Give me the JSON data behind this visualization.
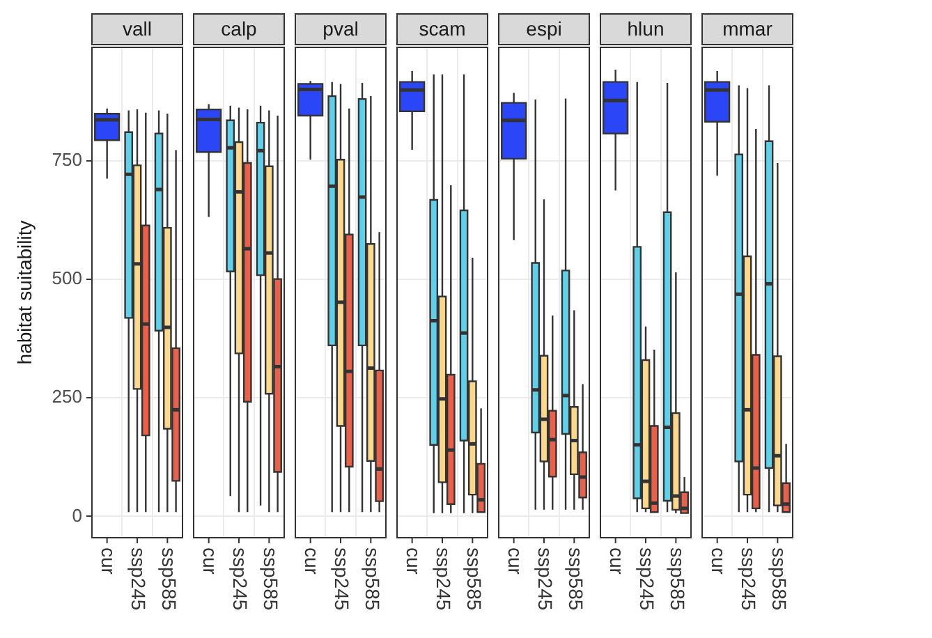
{
  "chart_data": [
    {
      "type": "box",
      "title": "vall",
      "ylabel": "habitat suitability",
      "categories": [
        "cur",
        "ssp245",
        "ssp585"
      ],
      "ylim": [
        -45,
        990
      ],
      "yticks": [
        0,
        250,
        500,
        750
      ],
      "grid": true,
      "series": [
        {
          "color": "#2a46f7",
          "boxes": [
            {
              "low": 713,
              "q1": 794,
              "median": 837,
              "q3": 850,
              "high": 861
            },
            null,
            null
          ]
        },
        {
          "color": "#5fd0ea",
          "boxes": [
            null,
            {
              "low": 9,
              "q1": 419,
              "median": 722,
              "q3": 811,
              "high": 857
            },
            {
              "low": 9,
              "q1": 392,
              "median": 690,
              "q3": 808,
              "high": 857
            }
          ]
        },
        {
          "color": "#fbd88c",
          "boxes": [
            null,
            {
              "low": 9,
              "q1": 269,
              "median": 533,
              "q3": 741,
              "high": 859
            },
            {
              "low": 9,
              "q1": 185,
              "median": 399,
              "q3": 609,
              "high": 850
            }
          ]
        },
        {
          "color": "#e9604b",
          "boxes": [
            null,
            {
              "low": 9,
              "q1": 171,
              "median": 406,
              "q3": 614,
              "high": 852
            },
            {
              "low": 9,
              "q1": 75,
              "median": 225,
              "q3": 355,
              "high": 773
            }
          ]
        }
      ]
    },
    {
      "type": "box",
      "title": "calp",
      "categories": [
        "cur",
        "ssp245",
        "ssp585"
      ],
      "ylim": [
        -45,
        990
      ],
      "yticks": [
        0,
        250,
        500,
        750
      ],
      "grid": true,
      "tick_labels": "x",
      "series": [
        {
          "color": "#2a46f7",
          "boxes": [
            {
              "low": 632,
              "q1": 769,
              "median": 838,
              "q3": 859,
              "high": 870
            },
            null,
            null
          ]
        },
        {
          "color": "#5fd0ea",
          "boxes": [
            null,
            {
              "low": 43,
              "q1": 517,
              "median": 778,
              "q3": 836,
              "high": 867
            },
            {
              "low": 23,
              "q1": 509,
              "median": 772,
              "q3": 831,
              "high": 867
            }
          ]
        },
        {
          "color": "#fbd88c",
          "boxes": [
            null,
            {
              "low": 9,
              "q1": 344,
              "median": 685,
              "q3": 790,
              "high": 863
            },
            {
              "low": 9,
              "q1": 259,
              "median": 556,
              "q3": 739,
              "high": 857
            }
          ]
        },
        {
          "color": "#e9604b",
          "boxes": [
            null,
            {
              "low": 9,
              "q1": 242,
              "median": 565,
              "q3": 746,
              "high": 859
            },
            {
              "low": 9,
              "q1": 94,
              "median": 316,
              "q3": 501,
              "high": 846
            }
          ]
        }
      ]
    },
    {
      "type": "box",
      "title": "pval",
      "categories": [
        "cur",
        "ssp245",
        "ssp585"
      ],
      "ylim": [
        -45,
        990
      ],
      "yticks": [
        0,
        250,
        500,
        750
      ],
      "grid": true,
      "tick_labels": "x",
      "series": [
        {
          "color": "#2a46f7",
          "boxes": [
            {
              "low": 753,
              "q1": 846,
              "median": 901,
              "q3": 913,
              "high": 919
            },
            null,
            null
          ]
        },
        {
          "color": "#5fd0ea",
          "boxes": [
            null,
            {
              "low": 9,
              "q1": 361,
              "median": 697,
              "q3": 887,
              "high": 917
            },
            {
              "low": 9,
              "q1": 361,
              "median": 674,
              "q3": 881,
              "high": 915
            }
          ]
        },
        {
          "color": "#fbd88c",
          "boxes": [
            null,
            {
              "low": 9,
              "q1": 191,
              "median": 452,
              "q3": 753,
              "high": 913
            },
            {
              "low": 9,
              "q1": 117,
              "median": 313,
              "q3": 575,
              "high": 887
            }
          ]
        },
        {
          "color": "#e9604b",
          "boxes": [
            null,
            {
              "low": 9,
              "q1": 105,
              "median": 306,
              "q3": 595,
              "high": 861
            },
            {
              "low": 9,
              "q1": 32,
              "median": 100,
              "q3": 308,
              "high": 600
            }
          ]
        }
      ]
    },
    {
      "type": "box",
      "title": "scam",
      "categories": [
        "cur",
        "ssp245",
        "ssp585"
      ],
      "ylim": [
        -45,
        990
      ],
      "yticks": [
        0,
        250,
        500,
        750
      ],
      "grid": true,
      "tick_labels": "x",
      "series": [
        {
          "color": "#2a46f7",
          "boxes": [
            {
              "low": 774,
              "q1": 855,
              "median": 900,
              "q3": 917,
              "high": 940
            },
            null,
            null
          ]
        },
        {
          "color": "#5fd0ea",
          "boxes": [
            null,
            {
              "low": 7,
              "q1": 151,
              "median": 413,
              "q3": 668,
              "high": 933
            },
            {
              "low": 7,
              "q1": 160,
              "median": 387,
              "q3": 646,
              "high": 933
            }
          ]
        },
        {
          "color": "#fbd88c",
          "boxes": [
            null,
            {
              "low": 7,
              "q1": 72,
              "median": 248,
              "q3": 464,
              "high": 933
            },
            {
              "low": 7,
              "q1": 46,
              "median": 153,
              "q3": 285,
              "high": 546
            }
          ]
        },
        {
          "color": "#e9604b",
          "boxes": [
            null,
            {
              "low": 7,
              "q1": 26,
              "median": 140,
              "q3": 299,
              "high": 699
            },
            {
              "low": 9,
              "q1": 9,
              "median": 35,
              "q3": 111,
              "high": 228
            }
          ]
        }
      ]
    },
    {
      "type": "box",
      "title": "espi",
      "categories": [
        "cur",
        "ssp245",
        "ssp585"
      ],
      "ylim": [
        -45,
        990
      ],
      "yticks": [
        0,
        250,
        500,
        750
      ],
      "grid": true,
      "tick_labels": "x",
      "series": [
        {
          "color": "#2a46f7",
          "boxes": [
            {
              "low": 583,
              "q1": 755,
              "median": 836,
              "q3": 873,
              "high": 894
            },
            null,
            null
          ]
        },
        {
          "color": "#5fd0ea",
          "boxes": [
            null,
            {
              "low": 14,
              "q1": 177,
              "median": 267,
              "q3": 535,
              "high": 880
            },
            {
              "low": 14,
              "q1": 174,
              "median": 255,
              "q3": 519,
              "high": 882
            }
          ]
        },
        {
          "color": "#fbd88c",
          "boxes": [
            null,
            {
              "low": 14,
              "q1": 116,
              "median": 205,
              "q3": 339,
              "high": 669
            },
            {
              "low": 14,
              "q1": 89,
              "median": 160,
              "q3": 231,
              "high": 435
            }
          ]
        },
        {
          "color": "#e9604b",
          "boxes": [
            null,
            {
              "low": 14,
              "q1": 84,
              "median": 162,
              "q3": 223,
              "high": 424
            },
            {
              "low": 14,
              "q1": 40,
              "median": 83,
              "q3": 135,
              "high": 279
            }
          ]
        }
      ]
    },
    {
      "type": "box",
      "title": "hlun",
      "categories": [
        "cur",
        "ssp245",
        "ssp585"
      ],
      "ylim": [
        -45,
        990
      ],
      "yticks": [
        0,
        250,
        500,
        750
      ],
      "grid": true,
      "tick_labels": "x",
      "series": [
        {
          "color": "#2a46f7",
          "boxes": [
            {
              "low": 688,
              "q1": 808,
              "median": 878,
              "q3": 917,
              "high": 943
            },
            null,
            null
          ]
        },
        {
          "color": "#5fd0ea",
          "boxes": [
            null,
            {
              "low": 9,
              "q1": 38,
              "median": 151,
              "q3": 569,
              "high": 917
            },
            {
              "low": 9,
              "q1": 33,
              "median": 188,
              "q3": 642,
              "high": 915
            }
          ]
        },
        {
          "color": "#fbd88c",
          "boxes": [
            null,
            {
              "low": 9,
              "q1": 17,
              "median": 74,
              "q3": 330,
              "high": 401
            },
            {
              "low": 7,
              "q1": 14,
              "median": 43,
              "q3": 218,
              "high": 515
            }
          ]
        },
        {
          "color": "#e9604b",
          "boxes": [
            null,
            {
              "low": 9,
              "q1": 9,
              "median": 28,
              "q3": 191,
              "high": 352
            },
            {
              "low": 7,
              "q1": 7,
              "median": 17,
              "q3": 51,
              "high": 83
            }
          ]
        }
      ]
    },
    {
      "type": "box",
      "title": "mmar",
      "categories": [
        "cur",
        "ssp245",
        "ssp585"
      ],
      "ylim": [
        -45,
        990
      ],
      "yticks": [
        0,
        250,
        500,
        750
      ],
      "grid": true,
      "tick_labels": "x",
      "series": [
        {
          "color": "#2a46f7",
          "boxes": [
            {
              "low": 719,
              "q1": 833,
              "median": 900,
              "q3": 917,
              "high": 940
            },
            null,
            null
          ]
        },
        {
          "color": "#5fd0ea",
          "boxes": [
            null,
            {
              "low": 9,
              "q1": 116,
              "median": 469,
              "q3": 764,
              "high": 910
            },
            {
              "low": 9,
              "q1": 102,
              "median": 491,
              "q3": 792,
              "high": 910
            }
          ]
        },
        {
          "color": "#fbd88c",
          "boxes": [
            null,
            {
              "low": 9,
              "q1": 46,
              "median": 225,
              "q3": 549,
              "high": 904
            },
            {
              "low": 9,
              "q1": 23,
              "median": 128,
              "q3": 338,
              "high": 746
            }
          ]
        },
        {
          "color": "#e9604b",
          "boxes": [
            null,
            {
              "low": 9,
              "q1": 17,
              "median": 102,
              "q3": 341,
              "high": 818
            },
            {
              "low": 9,
              "q1": 9,
              "median": 26,
              "q3": 70,
              "high": 153
            }
          ]
        }
      ]
    }
  ]
}
